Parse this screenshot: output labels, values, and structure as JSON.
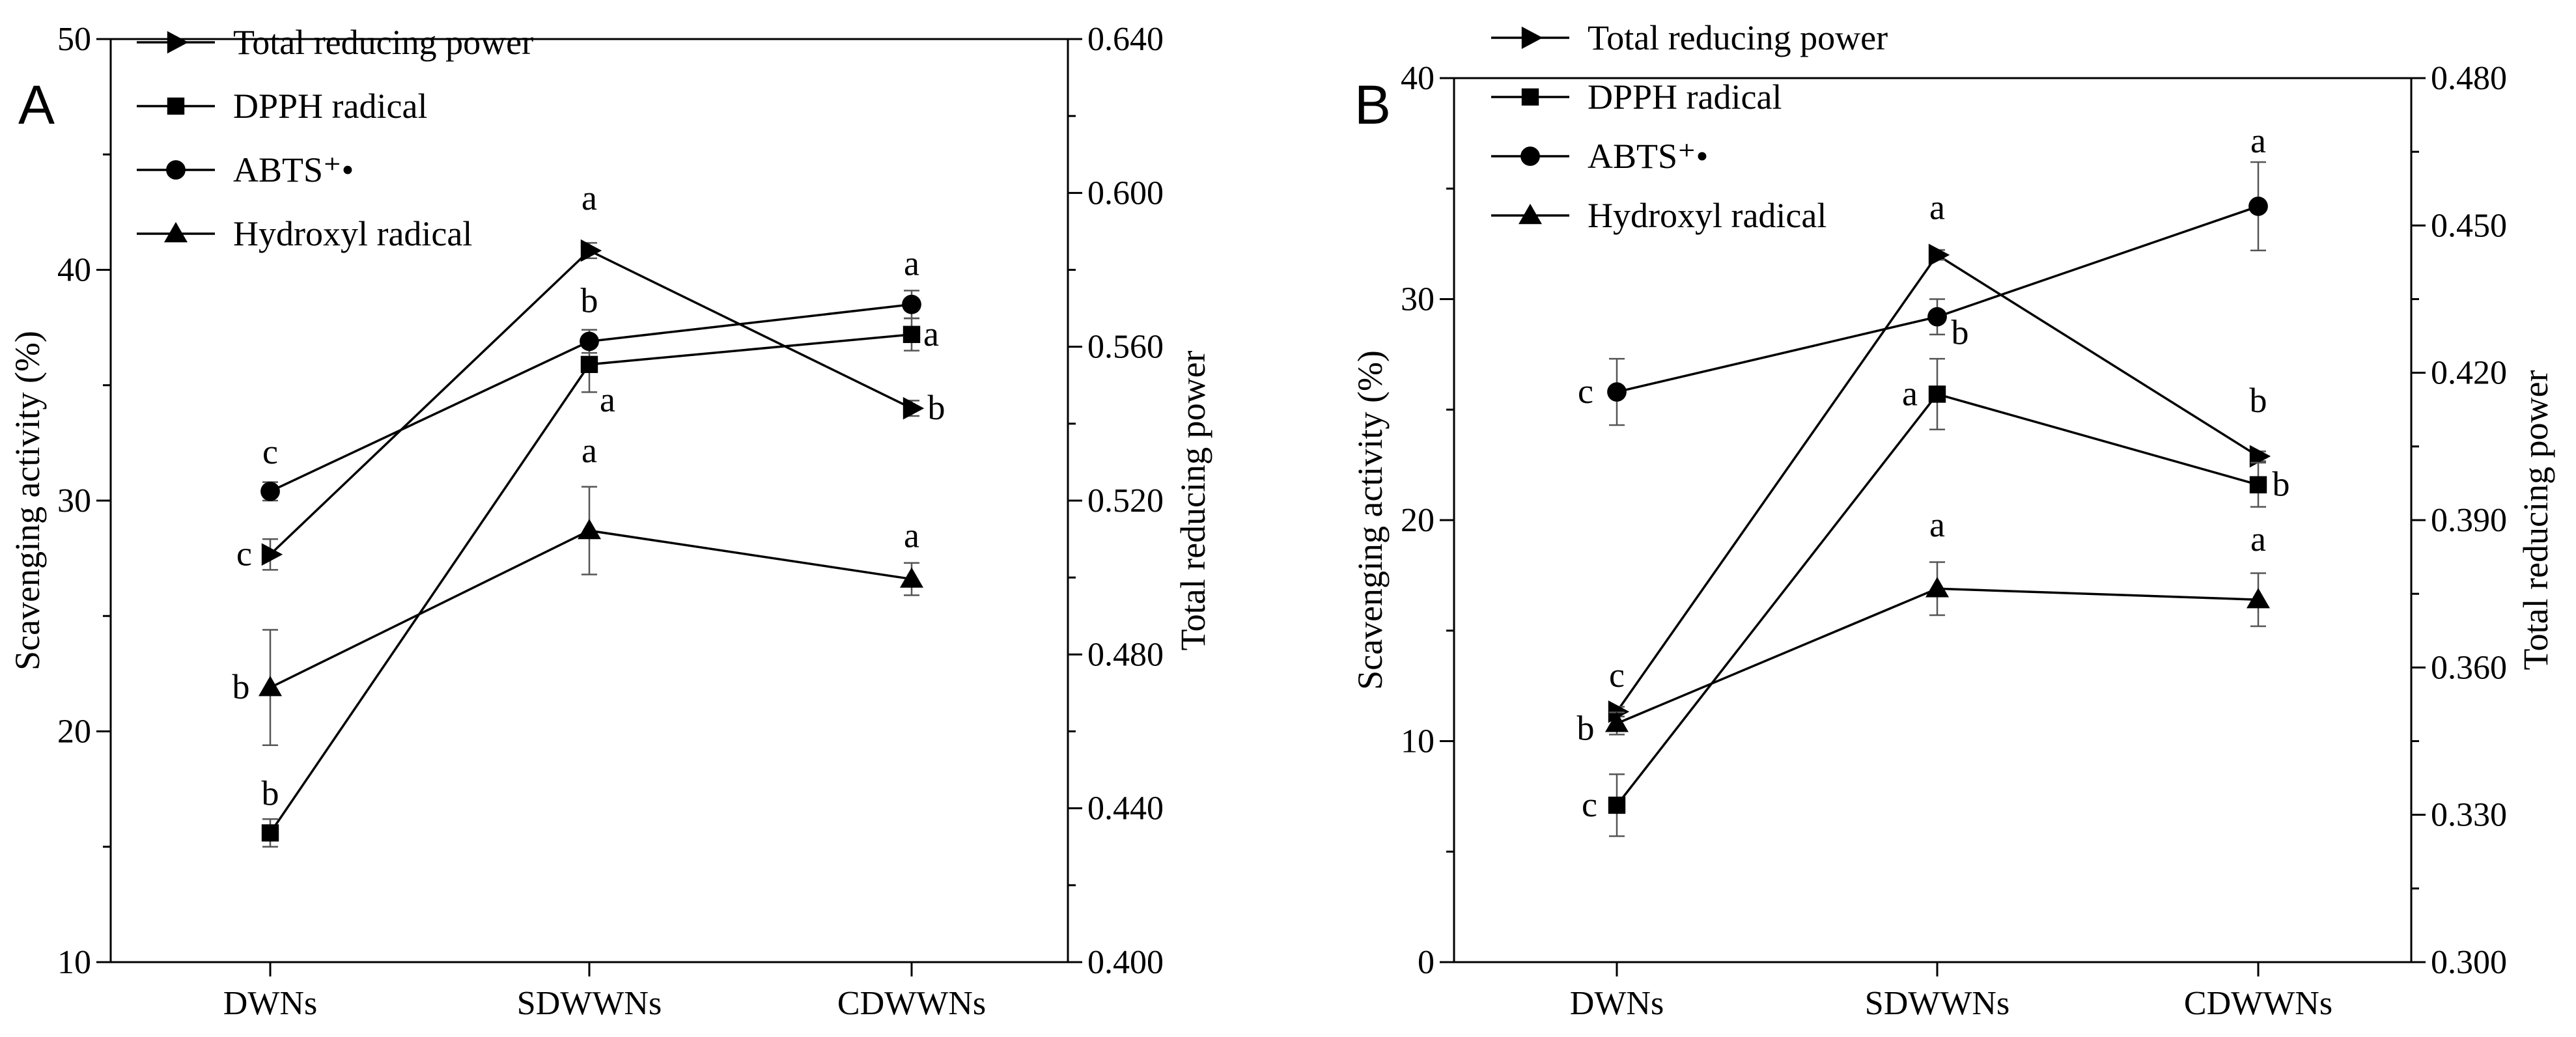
{
  "chart_data": [
    {
      "type": "line",
      "panel_label": "A",
      "categories": [
        "DWNs",
        "SDWWNs",
        "CDWWNs"
      ],
      "ylabel": "Scavenging activity (%)",
      "y2label": "Total reducing power",
      "ylim": [
        10,
        50
      ],
      "yticks": [
        "10",
        "20",
        "30",
        "40",
        "50"
      ],
      "y2lim": [
        0.4,
        0.64
      ],
      "y2ticks": [
        "0.400",
        "0.440",
        "0.480",
        "0.520",
        "0.560",
        "0.600",
        "0.640"
      ],
      "legend_position": "top-left",
      "series": [
        {
          "name": "Total reducing power",
          "marker": "triangle-right",
          "axis": "right",
          "values": [
            0.506,
            0.585,
            0.544
          ],
          "errors": [
            0.004,
            0.002,
            0.002
          ],
          "letters": [
            "c",
            "a",
            "b"
          ]
        },
        {
          "name": "DPPH radical",
          "marker": "square",
          "axis": "left",
          "values": [
            15.6,
            35.9,
            37.2
          ],
          "errors": [
            0.6,
            1.2,
            0.7
          ],
          "letters": [
            "b",
            "a",
            "a"
          ]
        },
        {
          "name": "ABTS⁺•",
          "marker": "circle",
          "axis": "left",
          "values": [
            30.4,
            36.9,
            38.5
          ],
          "errors": [
            0.4,
            0.5,
            0.6
          ],
          "letters": [
            "c",
            "b",
            "a"
          ]
        },
        {
          "name": "Hydroxyl radical",
          "marker": "triangle-up",
          "axis": "left",
          "values": [
            21.9,
            28.7,
            26.6
          ],
          "errors": [
            2.5,
            1.9,
            0.7
          ],
          "letters": [
            "b",
            "a",
            "a"
          ]
        }
      ]
    },
    {
      "type": "line",
      "panel_label": "B",
      "categories": [
        "DWNs",
        "SDWWNs",
        "CDWWNs"
      ],
      "ylabel": "Scavenging activity (%)",
      "y2label": "Total reducing power",
      "ylim": [
        0,
        40
      ],
      "yticks": [
        "0",
        "10",
        "20",
        "30",
        "40"
      ],
      "y2lim": [
        0.3,
        0.48
      ],
      "y2ticks": [
        "0.300",
        "0.330",
        "0.360",
        "0.390",
        "0.420",
        "0.450",
        "0.480"
      ],
      "legend_position": "top-left",
      "series": [
        {
          "name": "Total reducing power",
          "marker": "triangle-right",
          "axis": "right",
          "values": [
            0.351,
            0.444,
            0.403
          ],
          "errors": [
            0.001,
            0.001,
            0.001
          ],
          "letters": [
            "c",
            "a",
            "b"
          ]
        },
        {
          "name": "DPPH radical",
          "marker": "square",
          "axis": "left",
          "values": [
            7.1,
            25.7,
            21.6
          ],
          "errors": [
            1.4,
            1.6,
            1.0
          ],
          "letters": [
            "c",
            "a",
            "b"
          ]
        },
        {
          "name": "ABTS⁺•",
          "marker": "circle",
          "axis": "left",
          "values": [
            25.8,
            29.2,
            34.2
          ],
          "errors": [
            1.5,
            0.8,
            2.0
          ],
          "letters": [
            "c",
            "b",
            "a"
          ]
        },
        {
          "name": "Hydroxyl radical",
          "marker": "triangle-up",
          "axis": "left",
          "values": [
            10.8,
            16.9,
            16.4
          ],
          "errors": [
            0.5,
            1.2,
            1.2
          ],
          "letters": [
            "b",
            "a",
            "a"
          ]
        }
      ]
    }
  ]
}
